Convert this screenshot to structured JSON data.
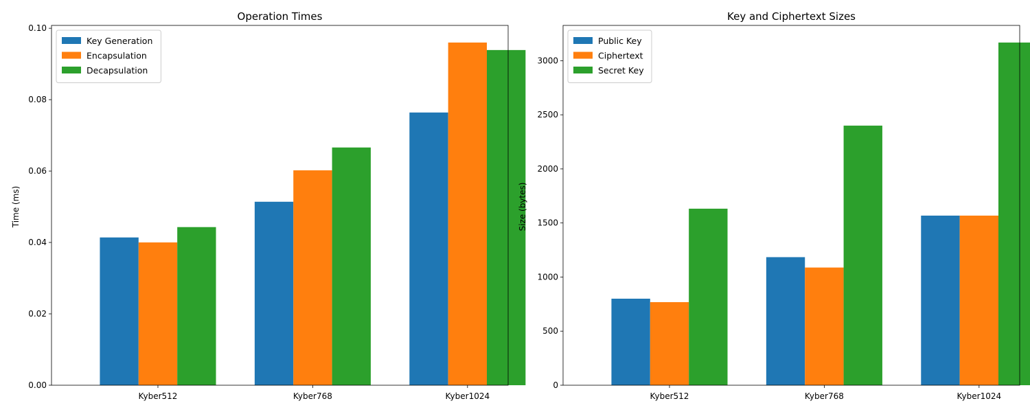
{
  "chart_data": [
    {
      "type": "bar",
      "title": "Operation Times",
      "xlabel": "",
      "ylabel": "Time (ms)",
      "categories": [
        "Kyber512",
        "Kyber768",
        "Kyber1024"
      ],
      "series": [
        {
          "name": "Key Generation",
          "color": "#1f77b4",
          "values": [
            0.0414,
            0.0514,
            0.0764
          ]
        },
        {
          "name": "Encapsulation",
          "color": "#ff7f0e",
          "values": [
            0.04,
            0.0602,
            0.096
          ]
        },
        {
          "name": "Decapsulation",
          "color": "#2ca02c",
          "values": [
            0.0443,
            0.0666,
            0.0939
          ]
        }
      ],
      "ylim": [
        0,
        0.1008
      ],
      "yticks": [
        0.0,
        0.02,
        0.04,
        0.06,
        0.08,
        0.1
      ],
      "ytick_labels": [
        "0.00",
        "0.02",
        "0.04",
        "0.06",
        "0.08",
        "0.10"
      ],
      "legend": "upper-left",
      "grid": false
    },
    {
      "type": "bar",
      "title": "Key and Ciphertext Sizes",
      "xlabel": "",
      "ylabel": "Size (bytes)",
      "categories": [
        "Kyber512",
        "Kyber768",
        "Kyber1024"
      ],
      "series": [
        {
          "name": "Public Key",
          "color": "#1f77b4",
          "values": [
            800,
            1184,
            1568
          ]
        },
        {
          "name": "Ciphertext",
          "color": "#ff7f0e",
          "values": [
            768,
            1088,
            1568
          ]
        },
        {
          "name": "Secret Key",
          "color": "#2ca02c",
          "values": [
            1632,
            2400,
            3168
          ]
        }
      ],
      "ylim": [
        0,
        3326.4
      ],
      "yticks": [
        0,
        500,
        1000,
        1500,
        2000,
        2500,
        3000
      ],
      "ytick_labels": [
        "0",
        "500",
        "1000",
        "1500",
        "2000",
        "2500",
        "3000"
      ],
      "legend": "upper-left",
      "grid": false
    }
  ]
}
